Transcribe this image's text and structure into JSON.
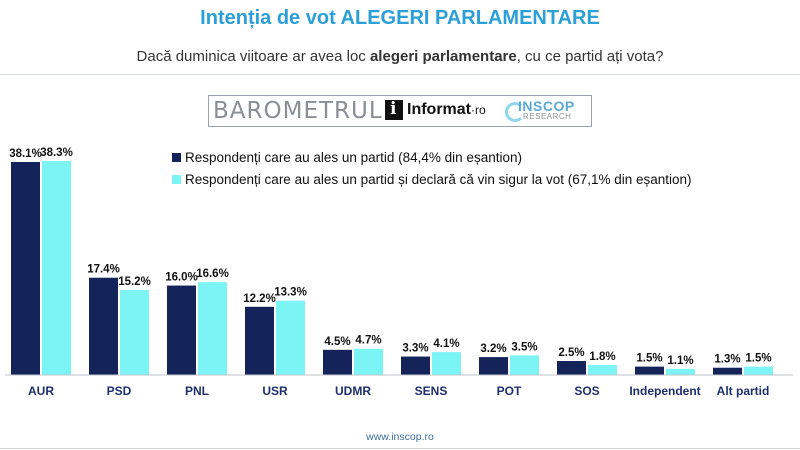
{
  "header": {
    "title": "Intenția de vot ALEGERI PARLAMENTARE",
    "subtitle_before": "Dacă duminica viitoare ar avea loc ",
    "subtitle_bold": "alegeri parlamentare",
    "subtitle_after": ", cu ce partid ați vota?"
  },
  "banner": {
    "barometrul": "BAROMETRUL",
    "informat_main": "Informat",
    "informat_suffix": "·ro",
    "inscop": "INSCOP",
    "research": "RESEARCH"
  },
  "colors": {
    "series1": "#14235a",
    "series2": "#7cf3f5",
    "title": "#2a9fd8"
  },
  "chart_data": {
    "type": "bar",
    "categories": [
      "AUR",
      "PSD",
      "PNL",
      "USR",
      "UDMR",
      "SENS",
      "POT",
      "SOS",
      "Independent",
      "Alt partid"
    ],
    "series": [
      {
        "name": "Respondenți care au ales un partid (84,4% din eșantion)",
        "values": [
          38.1,
          17.4,
          16.0,
          12.2,
          4.5,
          3.3,
          3.2,
          2.5,
          1.5,
          1.3
        ],
        "labels": [
          "38.1%",
          "17.4%",
          "16.0%",
          "12.2%",
          "4.5%",
          "3.3%",
          "3.2%",
          "2.5%",
          "1.5%",
          "1.3%"
        ]
      },
      {
        "name": "Respondenți care au ales un partid și declară că vin sigur la vot (67,1% din eșantion)",
        "values": [
          38.3,
          15.2,
          16.6,
          13.3,
          4.7,
          4.1,
          3.5,
          1.8,
          1.1,
          1.5
        ],
        "labels": [
          "38.3%",
          "15.2%",
          "16.6%",
          "13.3%",
          "4.7%",
          "4.1%",
          "3.5%",
          "1.8%",
          "1.1%",
          "1.5%"
        ]
      }
    ],
    "ylim": [
      0,
      40
    ],
    "legend_position": "top-center",
    "grid": false
  },
  "footer": {
    "source": "www.inscop.ro"
  }
}
